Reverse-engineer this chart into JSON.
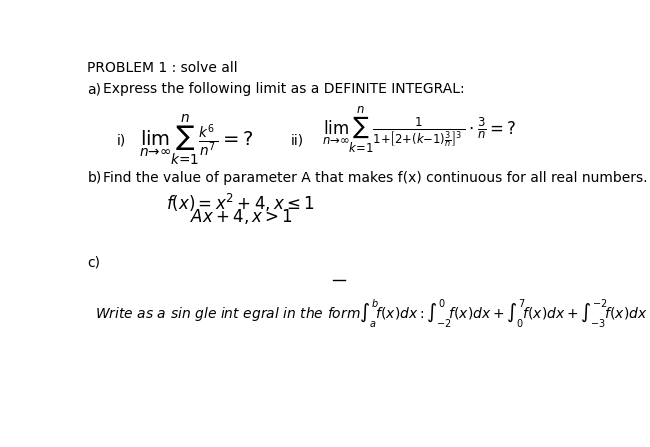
{
  "background_color": "#ffffff",
  "title": "PROBLEM 1 : solve all",
  "part_a_label": "a)",
  "part_a_text": "Express the following limit as a DEFINITE INTEGRAL:",
  "part_b_label": "b)",
  "part_b_text": "Find the value of parameter A that makes f(x) continuous for all real numbers.",
  "part_c_label": "c)",
  "formula_i": "$\\lim_{n\\to\\infty}\\sum_{k=1}^{n}\\frac{k^6}{n^7}= ?$",
  "formula_ii": "$\\lim_{n\\to\\infty}\\sum_{k=1}^{n}\\frac{1}{1+\\left[2+(k-1)\\frac{3}{n}\\right]^3}\\cdot\\frac{3}{n}= ?$",
  "formula_b1": "$f(x)=x^2+4, x\\leq 1$",
  "formula_b2": "$Ax+4, x>1$",
  "label_i": "i)",
  "label_ii": "ii)"
}
